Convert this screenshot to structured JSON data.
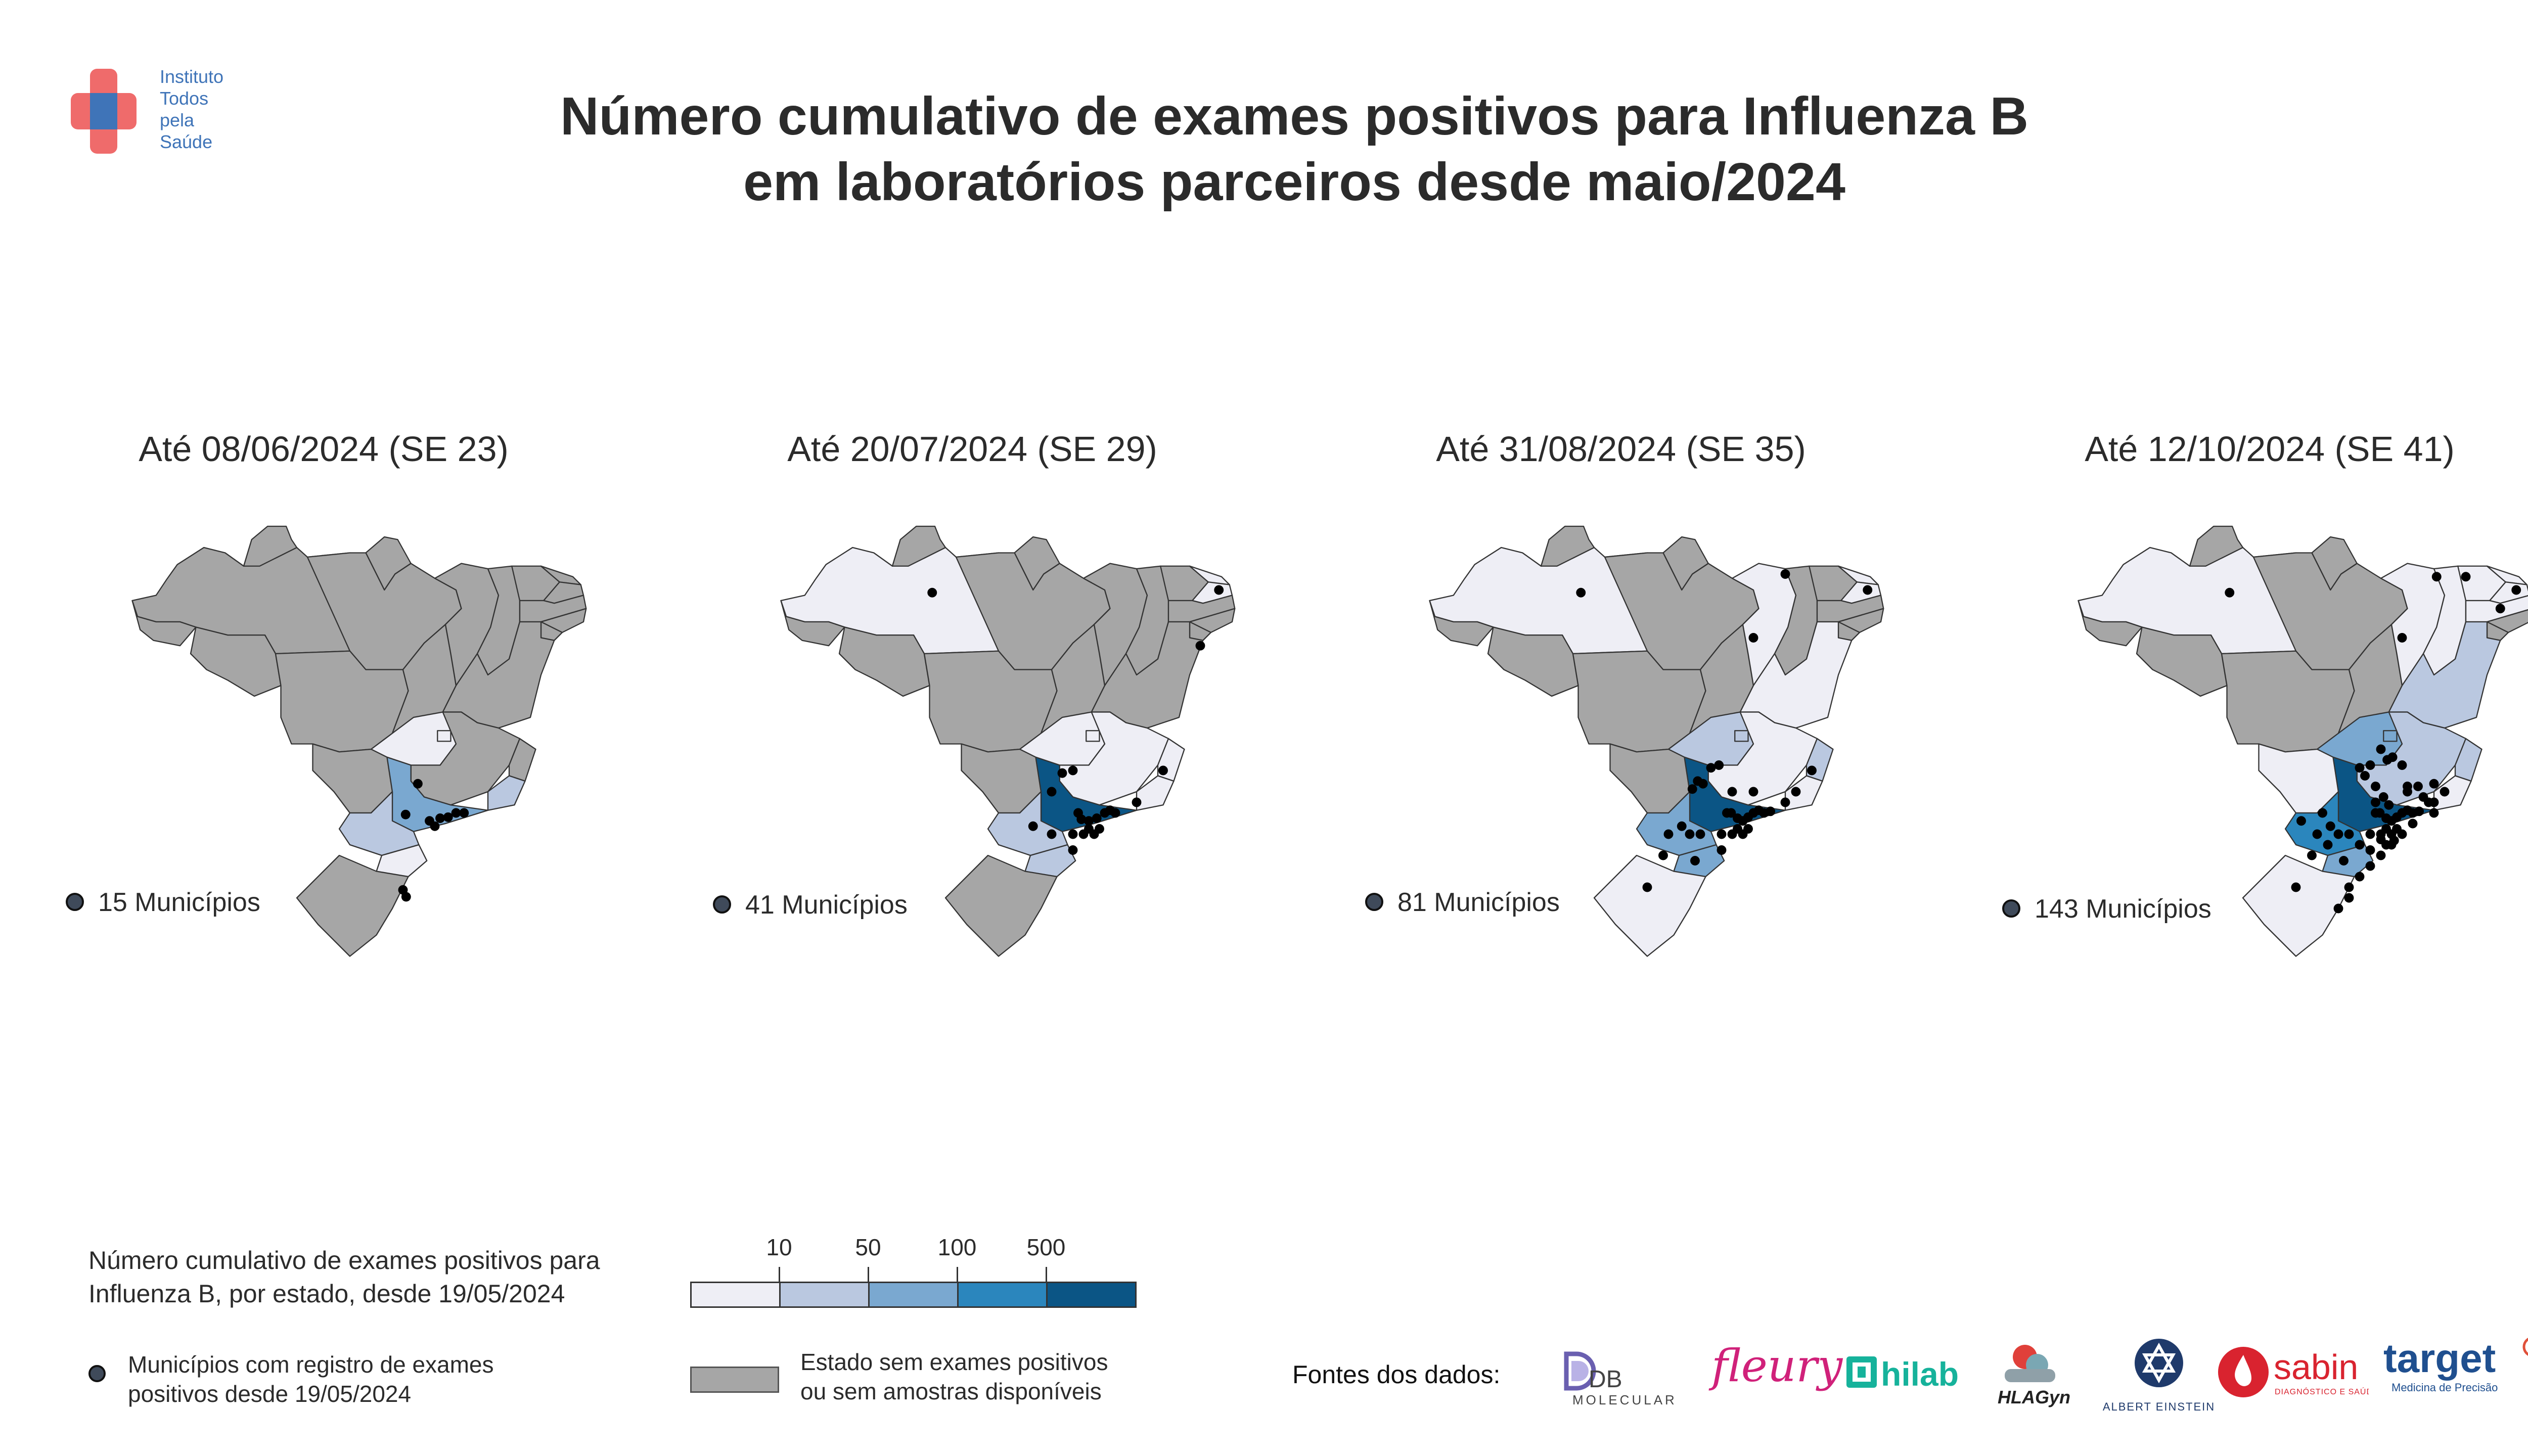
{
  "logo": {
    "lines": [
      "Instituto",
      "Todos",
      "pela",
      "Saúde"
    ]
  },
  "title": {
    "line1": "Número cumulativo de exames positivos para Influenza B",
    "line2": "em laboratórios parceiros desde maio/2024"
  },
  "panels": [
    {
      "title": "Até 08/06/2024 (SE 23)",
      "municipios": "15 Municípios"
    },
    {
      "title": "Até 20/07/2024 (SE 29)",
      "municipios": "41 Municípios"
    },
    {
      "title": "Até 31/08/2024 (SE 35)",
      "municipios": "81 Municípios"
    },
    {
      "title": "Até 12/10/2024 (SE 41)",
      "municipios": "143 Municípios"
    }
  ],
  "legend": {
    "title_line1": "Número cumulativo de exames positivos para",
    "title_line2": "Influenza B, por estado, desde 19/05/2024",
    "muni_line1": "Municípios com registro de exames",
    "muni_line2": "positivos desde 19/05/2024",
    "scale_labels": [
      "10",
      "50",
      "100",
      "500"
    ],
    "scale_colors": [
      "#eeeef5",
      "#bac8e0",
      "#7aa8d0",
      "#2b86bd",
      "#0b5585"
    ],
    "gray_line1": "Estado sem exames positivos",
    "gray_line2": "ou sem amostras disponíveis",
    "gray_color": "#a6a6a6"
  },
  "sources": {
    "label": "Fontes dos dados:",
    "labs": [
      "DB Molecular",
      "fleury",
      "hilab",
      "HLAGyn",
      "Albert Einstein",
      "sabin",
      "target"
    ]
  },
  "colors": {
    "level0": "#a6a6a6",
    "level1": "#eeeef5",
    "level2": "#bac8e0",
    "level3": "#7aa8d0",
    "level4": "#2b86bd",
    "level5": "#0b5585",
    "logo_red": "#ef6b6b",
    "logo_blue": "#3f74b8"
  }
}
